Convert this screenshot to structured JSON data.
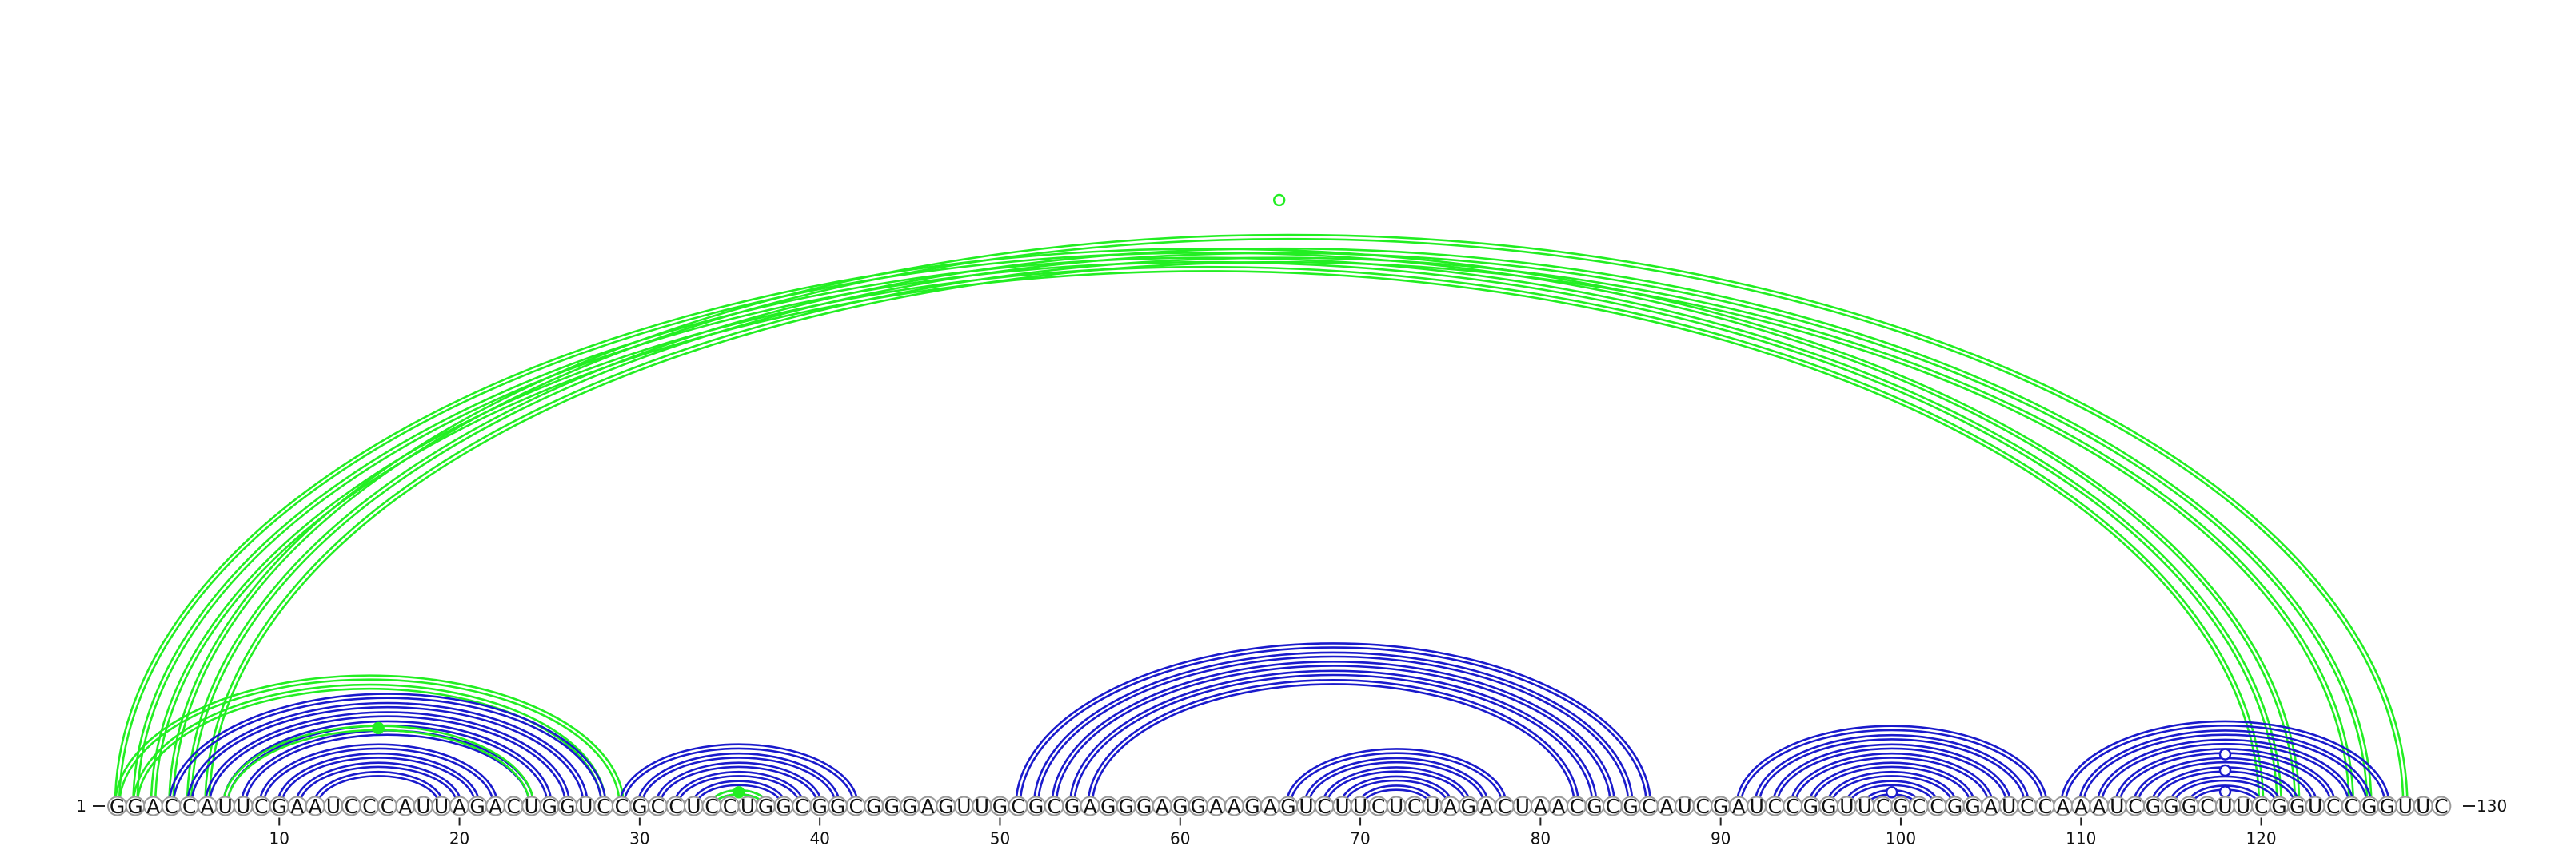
{
  "sequence": "GGACCAUUCGAAUCCCAUUAGACUGGUCCGCCUCCUGGCGGCGGGAGUUGCGCGAGGGAGGAAGAGUCUUCUCUAGACUAACGCGCAUCGAUCCGGUUCGCCGGAUCCAAAUCGGGCUUCGGUCCGGUUC",
  "end_labels": {
    "start": "1",
    "end": "130"
  },
  "axis_ticks": [
    "10",
    "20",
    "30",
    "40",
    "50",
    "60",
    "70",
    "80",
    "90",
    "100",
    "110",
    "120"
  ],
  "colors": {
    "long_range": "#22ee22",
    "local": "#1a1acc"
  },
  "helices": [
    {
      "i": 1,
      "j": 122,
      "len": 3,
      "type": "long_range"
    },
    {
      "i": 4,
      "j": 128,
      "len": 1,
      "type": "long_range"
    },
    {
      "i": 5,
      "j": 126,
      "len": 2,
      "type": "long_range"
    },
    {
      "i": 1,
      "j": 29,
      "len": 2,
      "type": "long_range"
    },
    {
      "i": 4,
      "j": 28,
      "len": 5,
      "type": "local"
    },
    {
      "i": 7,
      "j": 24,
      "len": 1,
      "type": "long_range"
    },
    {
      "i": 9,
      "j": 22,
      "len": 4,
      "type": "local"
    },
    {
      "i": 29,
      "j": 42,
      "len": 6,
      "type": "local"
    },
    {
      "i": 34,
      "j": 37,
      "len": 1,
      "type": "long_range"
    },
    {
      "i": 51,
      "j": 86,
      "len": 5,
      "type": "local"
    },
    {
      "i": 66,
      "j": 78,
      "len": 5,
      "type": "local"
    },
    {
      "i": 91,
      "j": 108,
      "len": 8,
      "type": "local"
    },
    {
      "i": 109,
      "j": 127,
      "len": 8,
      "type": "local"
    }
  ],
  "markers": [
    {
      "pos": 65,
      "type": "long_range",
      "filled": false
    },
    {
      "pos": 15,
      "type": "long_range",
      "filled": true
    },
    {
      "pos": 35,
      "type": "long_range",
      "filled": true
    },
    {
      "pos": 98,
      "type": "local",
      "filled": false
    },
    {
      "pos": 119,
      "type": "local",
      "filled": false
    },
    {
      "pos": 119,
      "type": "local",
      "filled": false
    },
    {
      "pos": 119,
      "type": "local",
      "filled": false
    }
  ]
}
